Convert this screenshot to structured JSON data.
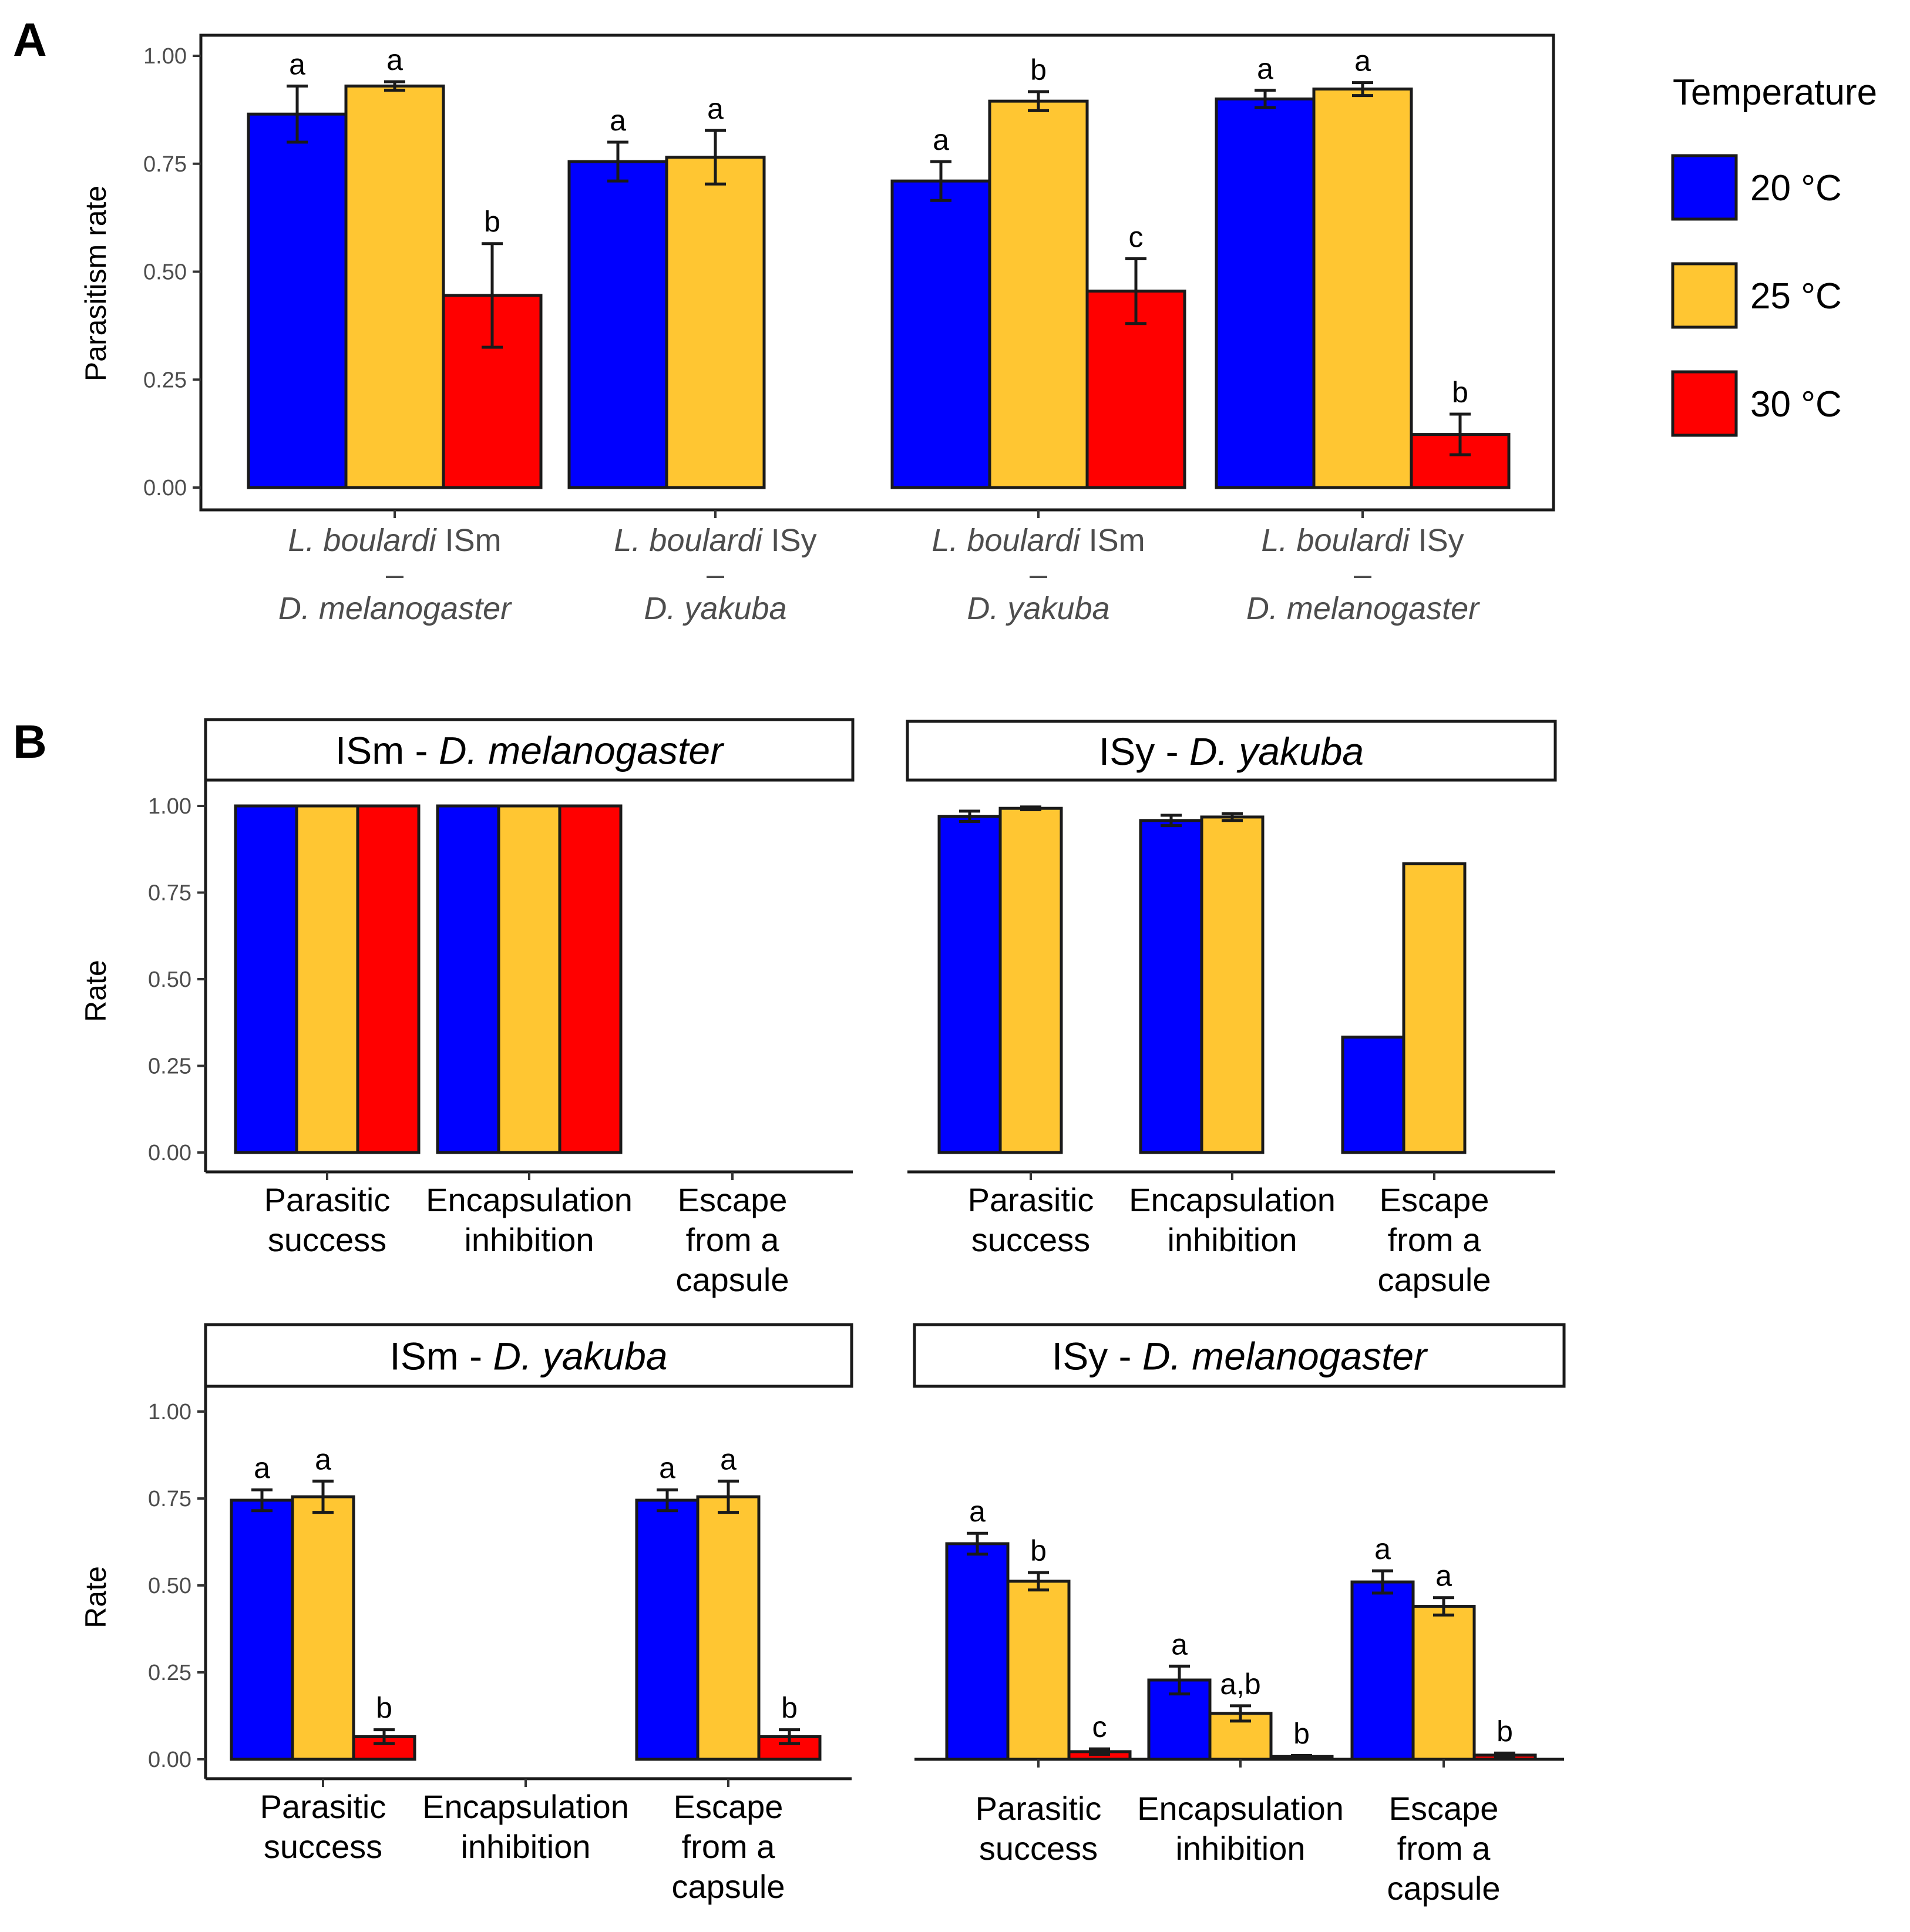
{
  "panel_labels": {
    "A": "A",
    "B": "B"
  },
  "temperature_colors": {
    "20 °C": "#0000ff",
    "25 °C": "#ffc632",
    "30 °C": "#ff0000"
  },
  "legend": {
    "title": "Temperature",
    "entries": [
      "20 °C",
      "25 °C",
      "30 °C"
    ]
  },
  "chart_data": [
    {
      "id": "A",
      "type": "bar",
      "ylabel": "Parasitism rate",
      "ylim": [
        0,
        1.05
      ],
      "yticks": [
        "0.00",
        "0.25",
        "0.50",
        "0.75",
        "1.00"
      ],
      "categories": [
        {
          "lines": [
            {
              "i": "L. boulardi",
              "r": " ISm"
            },
            {
              "i": "",
              "r": "–"
            },
            {
              "i": "D. melanogaster",
              "r": ""
            }
          ]
        },
        {
          "lines": [
            {
              "i": "L. boulardi",
              "r": " ISy"
            },
            {
              "i": "",
              "r": "–"
            },
            {
              "i": "D. yakuba",
              "r": ""
            }
          ]
        },
        {
          "lines": [
            {
              "i": "L. boulardi",
              "r": " ISm"
            },
            {
              "i": "",
              "r": "–"
            },
            {
              "i": "D. yakuba",
              "r": ""
            }
          ]
        },
        {
          "lines": [
            {
              "i": "L. boulardi",
              "r": " ISy"
            },
            {
              "i": "",
              "r": "–"
            },
            {
              "i": "D. melanogaster",
              "r": ""
            }
          ]
        }
      ],
      "series": [
        {
          "name": "20 °C",
          "values": [
            0.865,
            0.755,
            0.71,
            0.9
          ],
          "err": [
            0.065,
            0.045,
            0.045,
            0.02
          ],
          "labels": [
            "a",
            "a",
            "a",
            "a"
          ]
        },
        {
          "name": "25 °C",
          "values": [
            0.93,
            0.765,
            0.895,
            0.923
          ],
          "err": [
            0.01,
            0.062,
            0.022,
            0.015
          ],
          "labels": [
            "a",
            "a",
            "b",
            "a"
          ]
        },
        {
          "name": "30 °C",
          "values": [
            0.445,
            0,
            0.455,
            0.123
          ],
          "err": [
            0.12,
            0,
            0.075,
            0.047
          ],
          "labels": [
            "b",
            "",
            "c",
            "b"
          ]
        }
      ]
    },
    {
      "id": "B1",
      "type": "bar",
      "strip": {
        "plain": "ISm - ",
        "italic": "D. melanogaster"
      },
      "ylabel": "Rate",
      "ylim": [
        0,
        1.05
      ],
      "yticks": [
        "0.00",
        "0.25",
        "0.50",
        "0.75",
        "1.00"
      ],
      "categories": [
        [
          "Parasitic",
          "success"
        ],
        [
          "Encapsulation",
          "inhibition"
        ],
        [
          "Escape",
          "from a",
          "capsule"
        ]
      ],
      "series": [
        {
          "name": "20 °C",
          "values": [
            1,
            1,
            null
          ],
          "err": [
            0,
            0,
            null
          ],
          "labels": [
            "",
            "",
            ""
          ]
        },
        {
          "name": "25 °C",
          "values": [
            1,
            1,
            null
          ],
          "err": [
            0,
            0,
            null
          ],
          "labels": [
            "",
            "",
            ""
          ]
        },
        {
          "name": "30 °C",
          "values": [
            1,
            1,
            null
          ],
          "err": [
            0,
            0,
            null
          ],
          "labels": [
            "",
            "",
            ""
          ]
        }
      ]
    },
    {
      "id": "B2",
      "type": "bar",
      "strip": {
        "plain": "ISy - ",
        "italic": "D. yakuba"
      },
      "ylabel": "",
      "ylim": [
        0,
        1.05
      ],
      "yticks": [],
      "categories": [
        [
          "Parasitic",
          "success"
        ],
        [
          "Encapsulation",
          "inhibition"
        ],
        [
          "Escape",
          "from a",
          "capsule"
        ]
      ],
      "series": [
        {
          "name": "20 °C",
          "values": [
            0.97,
            0.958,
            0.333
          ],
          "err": [
            0.015,
            0.015,
            0
          ],
          "labels": [
            "",
            "",
            ""
          ]
        },
        {
          "name": "25 °C",
          "values": [
            0.993,
            0.968,
            0.833
          ],
          "err": [
            0.004,
            0.01,
            0
          ],
          "labels": [
            "",
            "",
            ""
          ]
        }
      ]
    },
    {
      "id": "B3",
      "type": "bar",
      "strip": {
        "plain": "ISm - ",
        "italic": "D. yakuba"
      },
      "ylabel": "Rate",
      "ylim": [
        0,
        1.05
      ],
      "yticks": [
        "0.00",
        "0.25",
        "0.50",
        "0.75",
        "1.00"
      ],
      "categories": [
        [
          "Parasitic",
          "success"
        ],
        [
          "Encapsulation",
          "inhibition"
        ],
        [
          "Escape",
          "from a",
          "capsule"
        ]
      ],
      "series": [
        {
          "name": "20 °C",
          "values": [
            0.745,
            0,
            0.745
          ],
          "err": [
            0.03,
            0,
            0.03
          ],
          "labels": [
            "a",
            "",
            "a"
          ]
        },
        {
          "name": "25 °C",
          "values": [
            0.755,
            0,
            0.755
          ],
          "err": [
            0.045,
            0,
            0.045
          ],
          "labels": [
            "a",
            "",
            "a"
          ]
        },
        {
          "name": "30 °C",
          "values": [
            0.065,
            0,
            0.065
          ],
          "err": [
            0.02,
            0,
            0.02
          ],
          "labels": [
            "b",
            "",
            "b"
          ]
        }
      ]
    },
    {
      "id": "B4",
      "type": "bar",
      "strip": {
        "plain": "ISy - ",
        "italic": "D. melanogaster"
      },
      "ylabel": "",
      "ylim": [
        0,
        1.05
      ],
      "yticks": [],
      "categories": [
        [
          "Parasitic",
          "success"
        ],
        [
          "Encapsulation",
          "inhibition"
        ],
        [
          "Escape",
          "from a",
          "capsule"
        ]
      ],
      "series": [
        {
          "name": "20 °C",
          "values": [
            0.62,
            0.228,
            0.51
          ],
          "err": [
            0.03,
            0.04,
            0.032
          ],
          "labels": [
            "a",
            "a",
            "a"
          ]
        },
        {
          "name": "25 °C",
          "values": [
            0.512,
            0.132,
            0.44
          ],
          "err": [
            0.025,
            0.022,
            0.025
          ],
          "labels": [
            "b",
            "a,b",
            "a"
          ]
        },
        {
          "name": "30 °C",
          "values": [
            0.022,
            0.008,
            0.012
          ],
          "err": [
            0.008,
            0.003,
            0.006
          ],
          "labels": [
            "c",
            "b",
            "b"
          ]
        }
      ]
    }
  ]
}
